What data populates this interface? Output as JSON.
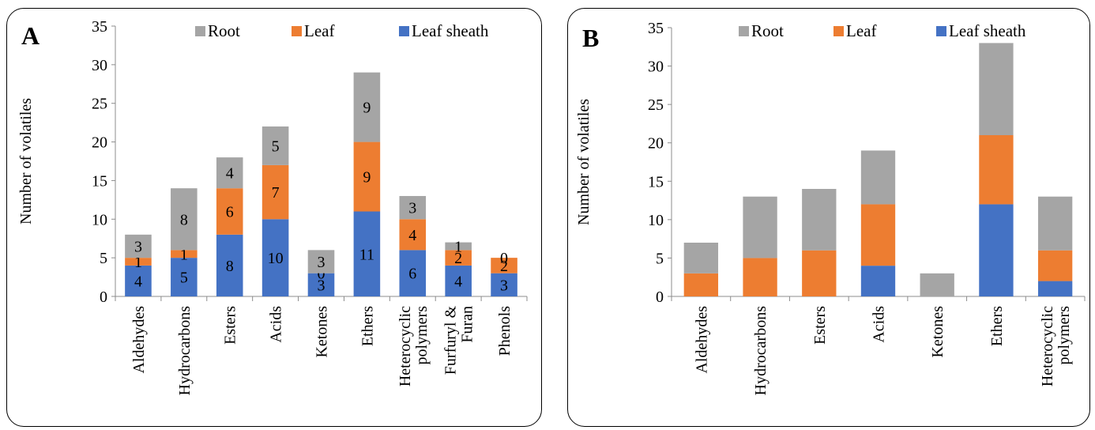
{
  "chart_data": [
    {
      "type": "bar",
      "stacked": true,
      "panel_label": "A",
      "title": "",
      "xlabel": "",
      "ylabel": "Number of volatiles",
      "ylim": [
        0,
        35
      ],
      "yticks": [
        "0",
        "5",
        "10",
        "15",
        "20",
        "25",
        "30",
        "35"
      ],
      "grid": false,
      "legend_position": "top",
      "categories": [
        [
          "Aldehydes"
        ],
        [
          "Hydrocarbons"
        ],
        [
          "Esters"
        ],
        [
          "Acids"
        ],
        [
          "Ketones"
        ],
        [
          "Ethers"
        ],
        [
          "Heterocyclic",
          "polymers"
        ],
        [
          "Furfuryl &",
          "Furan"
        ],
        [
          "Phenols"
        ]
      ],
      "series": [
        {
          "name": "Leaf sheath",
          "color": "#4472C4",
          "values": [
            4,
            5,
            8,
            10,
            3,
            11,
            6,
            4,
            3
          ],
          "labels": [
            "4",
            "5",
            "8",
            "10",
            "3",
            "11",
            "6",
            "4",
            "3"
          ]
        },
        {
          "name": "Leaf",
          "color": "#ED7D31",
          "values": [
            1,
            1,
            6,
            7,
            0,
            9,
            4,
            2,
            2
          ],
          "labels": [
            "1",
            "1",
            "6",
            "7",
            "0",
            "9",
            "4",
            "2",
            "2"
          ]
        },
        {
          "name": "Root",
          "color": "#A5A5A5",
          "values": [
            3,
            8,
            4,
            5,
            3,
            9,
            3,
            1,
            0
          ],
          "labels": [
            "3",
            "8",
            "4",
            "5",
            "3",
            "9",
            "3",
            "1",
            "0"
          ]
        }
      ],
      "legend_order": [
        "Root",
        "Leaf",
        "Leaf sheath"
      ]
    },
    {
      "type": "bar",
      "stacked": true,
      "panel_label": "B",
      "title": "",
      "xlabel": "",
      "ylabel": "Number of volatiles",
      "ylim": [
        0,
        35
      ],
      "yticks": [
        "0",
        "5",
        "10",
        "15",
        "20",
        "25",
        "30",
        "35"
      ],
      "grid": false,
      "legend_position": "top",
      "categories": [
        [
          "Aldehydes"
        ],
        [
          "Hydrocarbons"
        ],
        [
          "Esters"
        ],
        [
          "Acids"
        ],
        [
          "Ketones"
        ],
        [
          "Ethers"
        ],
        [
          "Heterocyclic",
          "polymers"
        ]
      ],
      "series": [
        {
          "name": "Leaf sheath",
          "color": "#4472C4",
          "values": [
            0,
            0,
            0,
            4,
            0,
            12,
            2
          ]
        },
        {
          "name": "Leaf",
          "color": "#ED7D31",
          "values": [
            3,
            5,
            6,
            8,
            0,
            9,
            4
          ]
        },
        {
          "name": "Root",
          "color": "#A5A5A5",
          "values": [
            4,
            8,
            8,
            7,
            3,
            12,
            7
          ]
        }
      ],
      "legend_order": [
        "Root",
        "Leaf",
        "Leaf sheath"
      ]
    }
  ]
}
